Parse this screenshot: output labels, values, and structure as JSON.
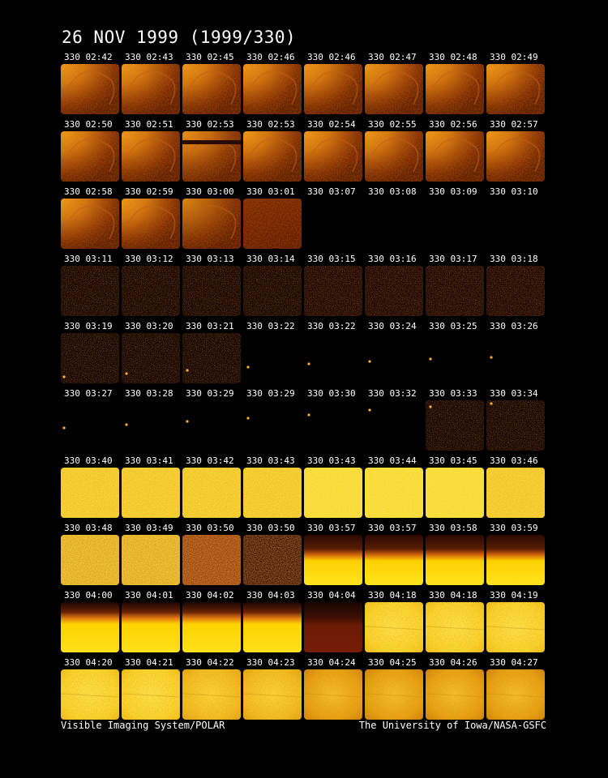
{
  "title": "26 NOV 1999  (1999/330)",
  "footer": {
    "left": "Visible Imaging System/POLAR",
    "right": "The University of Iowa/NASA-GSFC"
  },
  "rows": [
    {
      "frames": [
        {
          "label": "330 02:42",
          "style": "arc"
        },
        {
          "label": "330 02:43",
          "style": "arc"
        },
        {
          "label": "330 02:45",
          "style": "arc"
        },
        {
          "label": "330 02:46",
          "style": "arc"
        },
        {
          "label": "330 02:46",
          "style": "arc"
        },
        {
          "label": "330 02:47",
          "style": "arc"
        },
        {
          "label": "330 02:48",
          "style": "arc"
        },
        {
          "label": "330 02:49",
          "style": "arc"
        }
      ]
    },
    {
      "frames": [
        {
          "label": "330 02:50",
          "style": "arc"
        },
        {
          "label": "330 02:51",
          "style": "arc"
        },
        {
          "label": "330 02:53",
          "style": "arc-band"
        },
        {
          "label": "330 02:53",
          "style": "arc"
        },
        {
          "label": "330 02:54",
          "style": "arc"
        },
        {
          "label": "330 02:55",
          "style": "arc"
        },
        {
          "label": "330 02:56",
          "style": "arc"
        },
        {
          "label": "330 02:57",
          "style": "arc"
        }
      ]
    },
    {
      "frames": [
        {
          "label": "330 02:58",
          "style": "arc"
        },
        {
          "label": "330 02:59",
          "style": "arc"
        },
        {
          "label": "330 03:00",
          "style": "arc-dim"
        },
        {
          "label": "330 03:01",
          "style": "dim-red"
        },
        {
          "label": "330 03:07",
          "style": "black"
        },
        {
          "label": "330 03:08",
          "style": "black"
        },
        {
          "label": "330 03:09",
          "style": "black"
        },
        {
          "label": "330 03:10",
          "style": "black"
        }
      ]
    },
    {
      "frames": [
        {
          "label": "330 03:11",
          "style": "noise-dark"
        },
        {
          "label": "330 03:12",
          "style": "noise-dark"
        },
        {
          "label": "330 03:13",
          "style": "noise-dark"
        },
        {
          "label": "330 03:14",
          "style": "noise-dark"
        },
        {
          "label": "330 03:15",
          "style": "noise-dark2"
        },
        {
          "label": "330 03:16",
          "style": "noise-dark2"
        },
        {
          "label": "330 03:17",
          "style": "noise-dark2"
        },
        {
          "label": "330 03:18",
          "style": "noise-dark2"
        }
      ]
    },
    {
      "frames": [
        {
          "label": "330 03:19",
          "style": "noise-dot",
          "dot": [
            4,
            54
          ]
        },
        {
          "label": "330 03:20",
          "style": "noise-dot",
          "dot": [
            6,
            50
          ]
        },
        {
          "label": "330 03:21",
          "style": "noise-dot",
          "dot": [
            6,
            46
          ]
        },
        {
          "label": "330 03:22",
          "style": "black-dot",
          "dot": [
            6,
            42
          ]
        },
        {
          "label": "330 03:22",
          "style": "black-dot",
          "dot": [
            6,
            38
          ]
        },
        {
          "label": "330 03:24",
          "style": "black-dot",
          "dot": [
            6,
            35
          ]
        },
        {
          "label": "330 03:25",
          "style": "black-dot",
          "dot": [
            6,
            32
          ]
        },
        {
          "label": "330 03:26",
          "style": "black-dot",
          "dot": [
            6,
            30
          ]
        }
      ]
    },
    {
      "frames": [
        {
          "label": "330 03:27",
          "style": "black-dot",
          "dot": [
            4,
            34
          ]
        },
        {
          "label": "330 03:28",
          "style": "black-dot",
          "dot": [
            6,
            30
          ]
        },
        {
          "label": "330 03:29",
          "style": "black-dot",
          "dot": [
            6,
            26
          ]
        },
        {
          "label": "330 03:29",
          "style": "black-dot",
          "dot": [
            6,
            22
          ]
        },
        {
          "label": "330 03:30",
          "style": "black-dot",
          "dot": [
            6,
            18
          ]
        },
        {
          "label": "330 03:32",
          "style": "black-dot",
          "dot": [
            6,
            12
          ]
        },
        {
          "label": "330 03:33",
          "style": "noise-dot",
          "dot": [
            6,
            8
          ]
        },
        {
          "label": "330 03:34",
          "style": "noise-dot",
          "dot": [
            6,
            4
          ]
        }
      ]
    },
    {
      "frames": [
        {
          "label": "330 03:40",
          "style": "speckle"
        },
        {
          "label": "330 03:41",
          "style": "speckle"
        },
        {
          "label": "330 03:42",
          "style": "speckle"
        },
        {
          "label": "330 03:43",
          "style": "speckle"
        },
        {
          "label": "330 03:43",
          "style": "speckle-bright"
        },
        {
          "label": "330 03:44",
          "style": "speckle-bright"
        },
        {
          "label": "330 03:45",
          "style": "speckle-bright"
        },
        {
          "label": "330 03:46",
          "style": "speckle"
        }
      ]
    },
    {
      "frames": [
        {
          "label": "330 03:48",
          "style": "speckle-coarse"
        },
        {
          "label": "330 03:49",
          "style": "speckle-coarse"
        },
        {
          "label": "330 03:50",
          "style": "speckle-red"
        },
        {
          "label": "330 03:50",
          "style": "speckle-dark"
        },
        {
          "label": "330 03:57",
          "style": "limb"
        },
        {
          "label": "330 03:57",
          "style": "limb"
        },
        {
          "label": "330 03:58",
          "style": "limb"
        },
        {
          "label": "330 03:59",
          "style": "limb"
        }
      ]
    },
    {
      "frames": [
        {
          "label": "330 04:00",
          "style": "limb2"
        },
        {
          "label": "330 04:01",
          "style": "limb2"
        },
        {
          "label": "330 04:02",
          "style": "limb2"
        },
        {
          "label": "330 04:03",
          "style": "limb2"
        },
        {
          "label": "330 04:04",
          "style": "limb-dark"
        },
        {
          "label": "330 04:18",
          "style": "full-yellow"
        },
        {
          "label": "330 04:18",
          "style": "full-yellow"
        },
        {
          "label": "330 04:19",
          "style": "full-yellow"
        }
      ]
    },
    {
      "frames": [
        {
          "label": "330 04:20",
          "style": "full-yellow"
        },
        {
          "label": "330 04:21",
          "style": "full-yellow"
        },
        {
          "label": "330 04:22",
          "style": "full-yellow2"
        },
        {
          "label": "330 04:23",
          "style": "full-yellow2"
        },
        {
          "label": "330 04:24",
          "style": "full-orange"
        },
        {
          "label": "330 04:25",
          "style": "full-orange"
        },
        {
          "label": "330 04:26",
          "style": "full-orange"
        },
        {
          "label": "330 04:27",
          "style": "full-orange"
        }
      ]
    }
  ]
}
